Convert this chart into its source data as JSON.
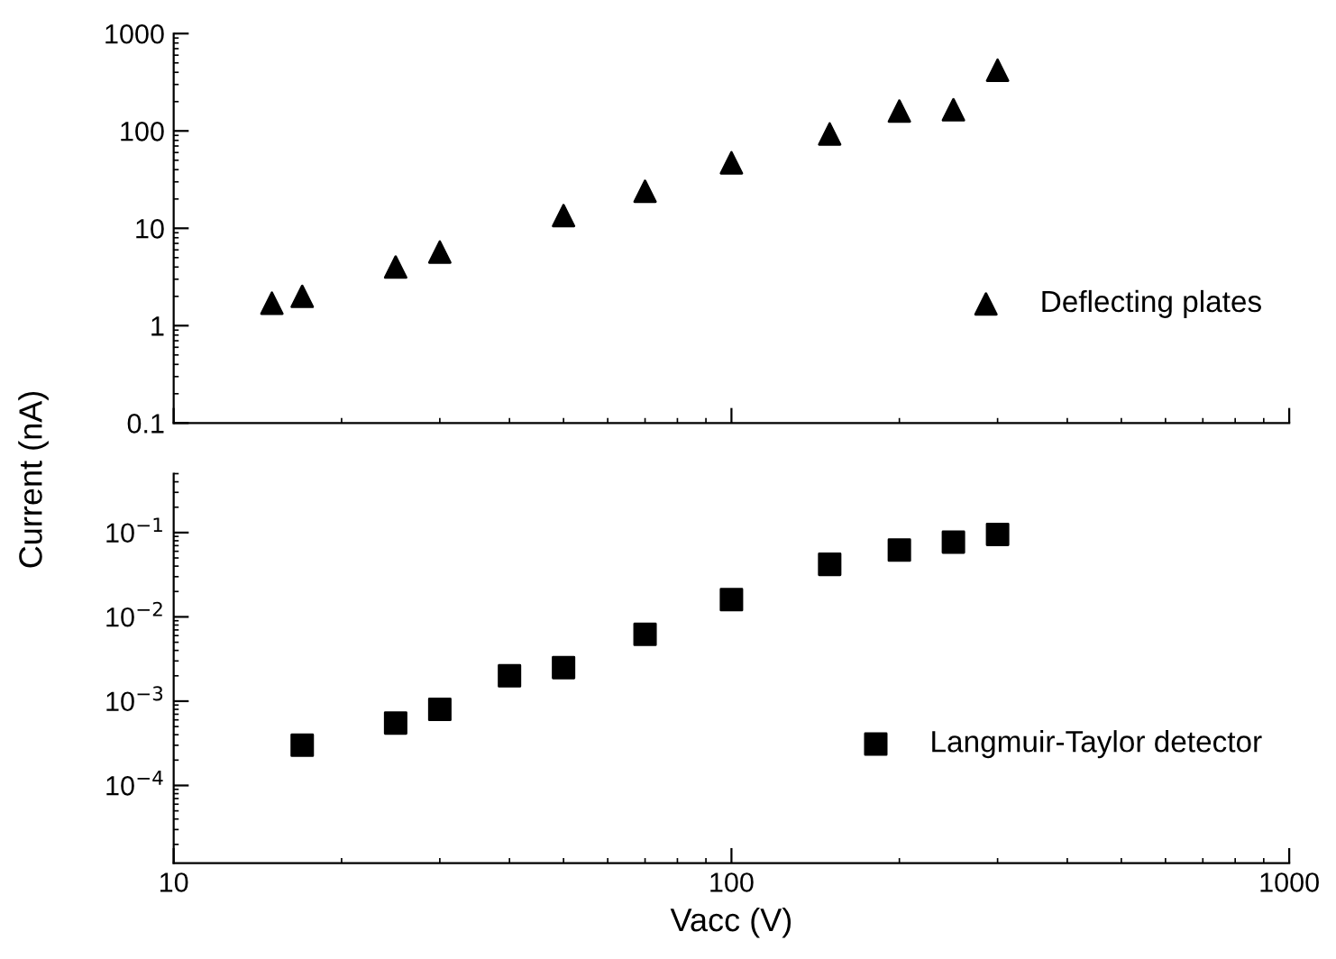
{
  "chart_data": [
    {
      "type": "scatter",
      "ylabel": "Current (nA)",
      "log": "xy",
      "xlim": [
        10,
        1000
      ],
      "ylim": [
        0.1,
        1000
      ],
      "yticks": [
        0.1,
        1,
        10,
        100,
        1000
      ],
      "xticks": [
        10,
        100,
        1000
      ],
      "tick_labels": "y",
      "legend": "bottom right",
      "marker": "triangle",
      "series": [
        {
          "name": "Deflecting plates",
          "color": "#000000",
          "x": [
            15,
            17,
            25,
            30,
            50,
            70,
            100,
            150,
            200,
            250,
            300
          ],
          "values": [
            1.7,
            2.0,
            4.0,
            5.7,
            13.5,
            24,
            47,
            93,
            160,
            165,
            420
          ]
        }
      ]
    },
    {
      "type": "scatter",
      "xlabel": "Vacc (V)",
      "log": "xy",
      "xlim": [
        10,
        1000
      ],
      "ylim": [
        1.2e-05,
        0.5
      ],
      "xticks": [
        10,
        100,
        1000
      ],
      "yticks": [
        {
          "value": 0.0001,
          "label": "10$^{−4}$"
        },
        {
          "value": 0.001,
          "label": "10$^{−3}$"
        },
        {
          "value": 0.01,
          "label": "10$^{−2}$"
        },
        {
          "value": 0.1,
          "label": "10$^{−1}$"
        }
      ],
      "legend": "bottom right",
      "marker": "square",
      "series": [
        {
          "name": "Langmuir-Taylor detector",
          "color": "#000000",
          "x": [
            17,
            25,
            30,
            40,
            50,
            70,
            100,
            150,
            200,
            250,
            300
          ],
          "values": [
            0.0003,
            0.00055,
            0.0008,
            0.002,
            0.0025,
            0.0062,
            0.016,
            0.042,
            0.062,
            0.077,
            0.095
          ]
        }
      ]
    }
  ]
}
